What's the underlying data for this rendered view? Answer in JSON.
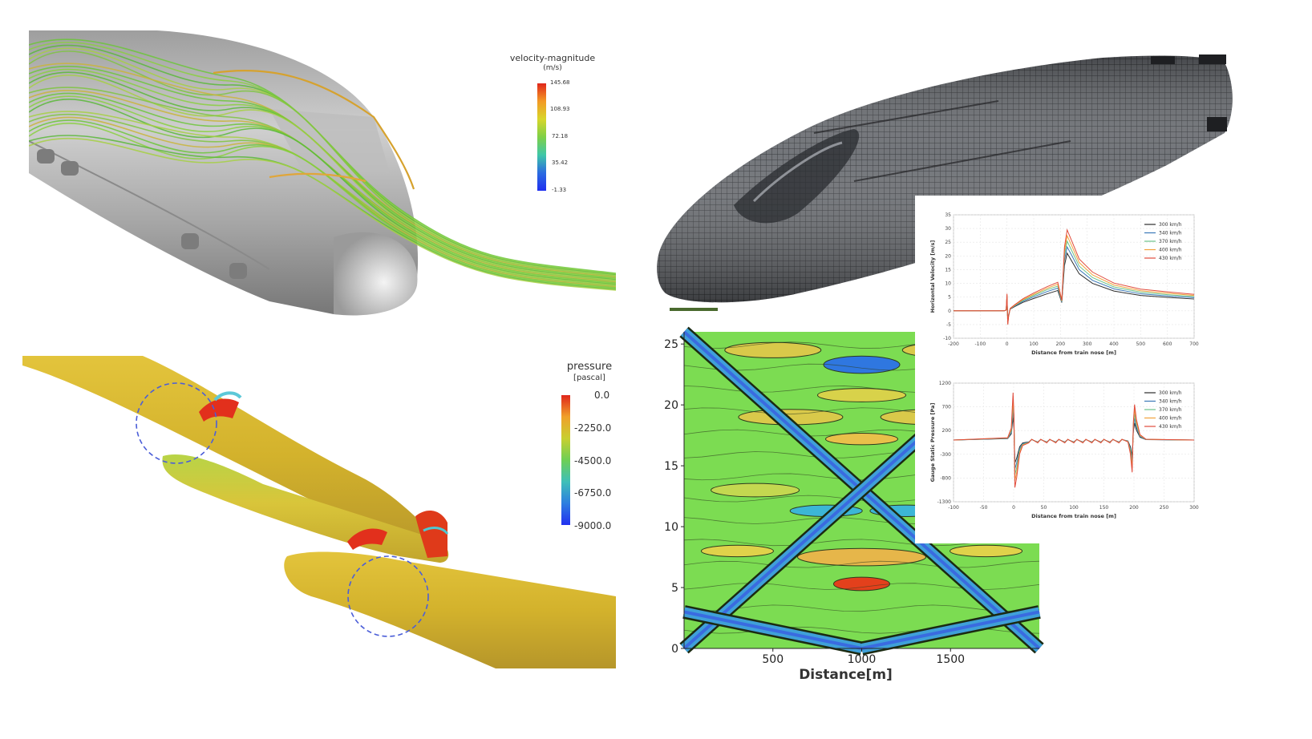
{
  "velocity_legend": {
    "title": "velocity-magnitude",
    "unit": "(m/s)",
    "ticks": [
      "145.68",
      "108.93",
      "72.18",
      "35.42",
      "-1.33"
    ]
  },
  "pressure_legend": {
    "title": "pressure",
    "unit": "[pascal]",
    "ticks": [
      "0.0",
      "-2250.0",
      "-4500.0",
      "-6750.0",
      "-9000.0"
    ]
  },
  "colors": {
    "body_gray": "#b9b9b9",
    "mesh_dark": "#3c3f44",
    "tube_yellow": "#d6b62f",
    "contour_green": "#7cdc52",
    "speed_300": "#2b2b2b",
    "speed_340": "#3a78b8",
    "speed_370": "#6cc38a",
    "speed_400": "#f2a23a",
    "speed_430": "#e14b3b"
  },
  "chart_data": [
    {
      "type": "line",
      "title": "",
      "xlabel": "Distance from train nose [m]",
      "ylabel": "Horizontal Velocity [m/s]",
      "xlim": [
        -200,
        700
      ],
      "ylim": [
        -10,
        35
      ],
      "xticks": [
        "-200",
        "-100",
        "0",
        "100",
        "200",
        "300",
        "400",
        "500",
        "600",
        "700"
      ],
      "yticks": [
        "35",
        "30",
        "25",
        "20",
        "15",
        "10",
        "5",
        "0",
        "-5",
        "-10"
      ],
      "legend_position": "top-right",
      "series": [
        {
          "name": "300 km/h",
          "x": [
            -200,
            -10,
            -3,
            0,
            3,
            6,
            12,
            30,
            60,
            100,
            150,
            190,
            205,
            215,
            225,
            240,
            270,
            320,
            400,
            500,
            600,
            700
          ],
          "y": [
            0,
            0,
            0.3,
            4.5,
            -3.6,
            -1.5,
            0.6,
            1.6,
            3.1,
            4.5,
            6.2,
            7.4,
            3.0,
            16.5,
            21.0,
            18.5,
            13.5,
            10.0,
            7.2,
            5.6,
            4.9,
            4.3
          ]
        },
        {
          "name": "340 km/h",
          "x": [
            -200,
            -10,
            -3,
            0,
            3,
            6,
            12,
            30,
            60,
            100,
            150,
            190,
            205,
            215,
            225,
            240,
            270,
            320,
            400,
            500,
            600,
            700
          ],
          "y": [
            0,
            0,
            0.3,
            5.0,
            -4.0,
            -1.7,
            0.7,
            1.8,
            3.5,
            5.1,
            7.0,
            8.3,
            3.2,
            18.4,
            23.3,
            20.6,
            15.0,
            11.1,
            8.0,
            6.2,
            5.4,
            4.8
          ]
        },
        {
          "name": "370 km/h",
          "x": [
            -200,
            -10,
            -3,
            0,
            3,
            6,
            12,
            30,
            60,
            100,
            150,
            190,
            205,
            215,
            225,
            240,
            270,
            320,
            400,
            500,
            600,
            700
          ],
          "y": [
            0,
            0,
            0.3,
            5.4,
            -4.4,
            -1.9,
            0.8,
            2.0,
            3.8,
            5.6,
            7.7,
            9.0,
            3.4,
            20.0,
            25.4,
            22.4,
            16.3,
            12.1,
            8.7,
            6.8,
            5.9,
            5.2
          ]
        },
        {
          "name": "400 km/h",
          "x": [
            -200,
            -10,
            -3,
            0,
            3,
            6,
            12,
            30,
            60,
            100,
            150,
            190,
            205,
            215,
            225,
            240,
            270,
            320,
            400,
            500,
            600,
            700
          ],
          "y": [
            0,
            0,
            0.3,
            5.8,
            -4.7,
            -2.0,
            0.8,
            2.1,
            4.1,
            6.0,
            8.2,
            9.7,
            3.6,
            21.6,
            27.4,
            24.2,
            17.6,
            13.1,
            9.4,
            7.3,
            6.4,
            5.6
          ]
        },
        {
          "name": "430 km/h",
          "x": [
            -200,
            -10,
            -3,
            0,
            3,
            6,
            12,
            30,
            60,
            100,
            150,
            190,
            205,
            215,
            225,
            240,
            270,
            320,
            400,
            500,
            600,
            700
          ],
          "y": [
            0,
            0,
            0.3,
            6.2,
            -5.0,
            -2.1,
            0.9,
            2.3,
            4.4,
            6.5,
            8.8,
            10.4,
            3.8,
            23.2,
            29.5,
            26.0,
            18.9,
            14.1,
            10.1,
            7.9,
            6.9,
            6.0
          ]
        }
      ]
    },
    {
      "type": "line",
      "title": "",
      "xlabel": "Distance from train nose [m]",
      "ylabel": "Gauge Static Pressure [Pa]",
      "xlim": [
        -100,
        300
      ],
      "ylim": [
        -1300,
        1200
      ],
      "xticks": [
        "-100",
        "-50",
        "0",
        "50",
        "100",
        "150",
        "200",
        "250",
        "300"
      ],
      "yticks": [
        "1200",
        "700",
        "200",
        "-300",
        "-800",
        "-1300"
      ],
      "legend_position": "top-right",
      "series": [
        {
          "name": "300 km/h",
          "x": [
            -100,
            -10,
            -4,
            -1,
            0.5,
            2,
            5,
            10,
            15,
            25,
            30,
            40,
            45,
            55,
            60,
            70,
            75,
            85,
            90,
            100,
            105,
            115,
            120,
            130,
            135,
            145,
            150,
            160,
            165,
            175,
            180,
            190,
            194,
            197,
            199,
            201,
            204,
            210,
            220,
            300
          ],
          "y": [
            0,
            30,
            130,
            480,
            250,
            -480,
            -380,
            -140,
            -60,
            -40,
            10,
            -40,
            10,
            -40,
            10,
            -40,
            10,
            -40,
            10,
            -40,
            10,
            -40,
            10,
            -40,
            10,
            -40,
            10,
            -40,
            10,
            -40,
            10,
            -20,
            -140,
            -330,
            180,
            360,
            210,
            60,
            10,
            0
          ]
        },
        {
          "name": "340 km/h",
          "x": [
            -100,
            -10,
            -4,
            -1,
            0.5,
            2,
            5,
            10,
            15,
            25,
            30,
            40,
            45,
            55,
            60,
            70,
            75,
            85,
            90,
            100,
            105,
            115,
            120,
            130,
            135,
            145,
            150,
            160,
            165,
            175,
            180,
            190,
            194,
            197,
            199,
            201,
            204,
            210,
            220,
            300
          ],
          "y": [
            0,
            35,
            160,
            610,
            320,
            -610,
            -480,
            -180,
            -75,
            -45,
            12,
            -45,
            12,
            -45,
            12,
            -45,
            12,
            -45,
            12,
            -45,
            12,
            -45,
            12,
            -45,
            12,
            -45,
            12,
            -45,
            12,
            -45,
            12,
            -25,
            -180,
            -420,
            230,
            460,
            270,
            75,
            12,
            0
          ]
        },
        {
          "name": "370 km/h",
          "x": [
            -100,
            -10,
            -4,
            -1,
            0.5,
            2,
            5,
            10,
            15,
            25,
            30,
            40,
            45,
            55,
            60,
            70,
            75,
            85,
            90,
            100,
            105,
            115,
            120,
            130,
            135,
            145,
            150,
            160,
            165,
            175,
            180,
            190,
            194,
            197,
            199,
            201,
            204,
            210,
            220,
            300
          ],
          "y": [
            0,
            40,
            190,
            730,
            380,
            -730,
            -580,
            -210,
            -90,
            -50,
            14,
            -50,
            14,
            -50,
            14,
            -50,
            14,
            -50,
            14,
            -50,
            14,
            -50,
            14,
            -50,
            14,
            -50,
            14,
            -50,
            14,
            -50,
            14,
            -30,
            -210,
            -500,
            280,
            550,
            320,
            90,
            14,
            0
          ]
        },
        {
          "name": "400 km/h",
          "x": [
            -100,
            -10,
            -4,
            -1,
            0.5,
            2,
            5,
            10,
            15,
            25,
            30,
            40,
            45,
            55,
            60,
            70,
            75,
            85,
            90,
            100,
            105,
            115,
            120,
            130,
            135,
            145,
            150,
            160,
            165,
            175,
            180,
            190,
            194,
            197,
            199,
            201,
            204,
            210,
            220,
            300
          ],
          "y": [
            0,
            45,
            220,
            860,
            450,
            -860,
            -680,
            -250,
            -100,
            -55,
            16,
            -55,
            16,
            -55,
            16,
            -55,
            16,
            -55,
            16,
            -55,
            16,
            -55,
            16,
            -55,
            16,
            -55,
            16,
            -55,
            16,
            -55,
            16,
            -35,
            -250,
            -590,
            330,
            650,
            380,
            100,
            16,
            0
          ]
        },
        {
          "name": "430 km/h",
          "x": [
            -100,
            -10,
            -4,
            -1,
            0.5,
            2,
            5,
            10,
            15,
            25,
            30,
            40,
            45,
            55,
            60,
            70,
            75,
            85,
            90,
            100,
            105,
            115,
            120,
            130,
            135,
            145,
            150,
            160,
            165,
            175,
            180,
            190,
            194,
            197,
            199,
            201,
            204,
            210,
            220,
            300
          ],
          "y": [
            0,
            50,
            250,
            1000,
            520,
            -1000,
            -790,
            -290,
            -115,
            -60,
            18,
            -60,
            18,
            -60,
            18,
            -60,
            18,
            -60,
            18,
            -60,
            18,
            -60,
            18,
            -60,
            18,
            -60,
            18,
            -60,
            18,
            -60,
            18,
            -40,
            -290,
            -680,
            380,
            750,
            440,
            115,
            18,
            0
          ]
        }
      ]
    },
    {
      "type": "heatmap",
      "title": "",
      "xlabel": "Distance[m]",
      "ylabel": "",
      "xlim": [
        0,
        2000
      ],
      "ylim": [
        0,
        26
      ],
      "xticks": [
        "500",
        "1000",
        "1500"
      ],
      "yticks": [
        "25",
        "20",
        "15",
        "10",
        "5",
        "0"
      ]
    }
  ]
}
